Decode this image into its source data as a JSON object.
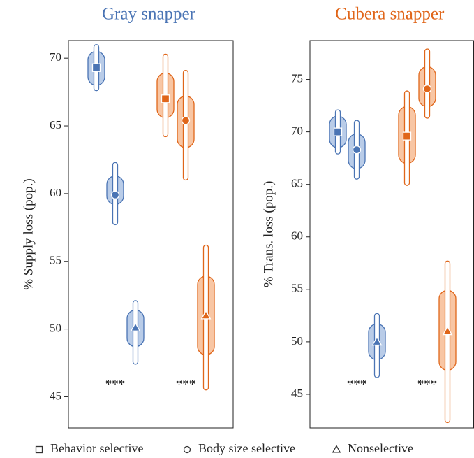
{
  "legend": [
    {
      "name": "Gray snapper",
      "color": "#4a74b4",
      "fill": "#b9cce8"
    },
    {
      "name": "Cubera snapper",
      "color": "#e0661a",
      "fill": "#f8c6a4"
    }
  ],
  "markers": [
    {
      "label": "Behavior selective",
      "shape": "square"
    },
    {
      "label": "Body size selective",
      "shape": "circle"
    },
    {
      "label": "Nonselective",
      "shape": "triangle"
    }
  ],
  "chart_data": [
    {
      "type": "interval",
      "y_label": "% Supply loss (pop.)",
      "ylim": [
        42.7,
        71.3
      ],
      "yticks": [
        45,
        50,
        55,
        60,
        65,
        70
      ],
      "annotations": [
        "***",
        "***"
      ],
      "series": [
        {
          "values": [
            69.3,
            59.9,
            50.1
          ],
          "inner_low": [
            68.0,
            59.2,
            48.7
          ],
          "inner_high": [
            70.5,
            61.3,
            51.4
          ],
          "outer_low": [
            67.6,
            57.7,
            47.4
          ],
          "outer_high": [
            71.0,
            62.3,
            52.1
          ]
        },
        {
          "values": [
            67.0,
            65.4,
            51.0
          ],
          "inner_low": [
            65.6,
            63.4,
            48.1
          ],
          "inner_high": [
            68.9,
            67.2,
            53.9
          ],
          "outer_low": [
            64.2,
            61.0,
            45.5
          ],
          "outer_high": [
            70.3,
            69.1,
            56.2
          ]
        }
      ]
    },
    {
      "type": "interval",
      "y_label": "% Trans. loss (pop.)",
      "ylim": [
        41.8,
        78.7
      ],
      "yticks": [
        45,
        50,
        55,
        60,
        65,
        70,
        75
      ],
      "annotations": [
        "***",
        "***"
      ],
      "series": [
        {
          "values": [
            70.0,
            68.3,
            50.0
          ],
          "inner_low": [
            68.5,
            66.5,
            48.3
          ],
          "inner_high": [
            71.5,
            69.8,
            51.7
          ],
          "outer_low": [
            67.9,
            65.5,
            46.6
          ],
          "outer_high": [
            72.1,
            71.1,
            52.7
          ]
        },
        {
          "values": [
            69.6,
            74.1,
            51.0
          ],
          "inner_low": [
            67.0,
            72.4,
            47.3
          ],
          "inner_high": [
            72.4,
            76.2,
            54.9
          ],
          "outer_low": [
            64.9,
            71.3,
            42.3
          ],
          "outer_high": [
            73.9,
            77.9,
            57.7
          ]
        }
      ]
    }
  ]
}
